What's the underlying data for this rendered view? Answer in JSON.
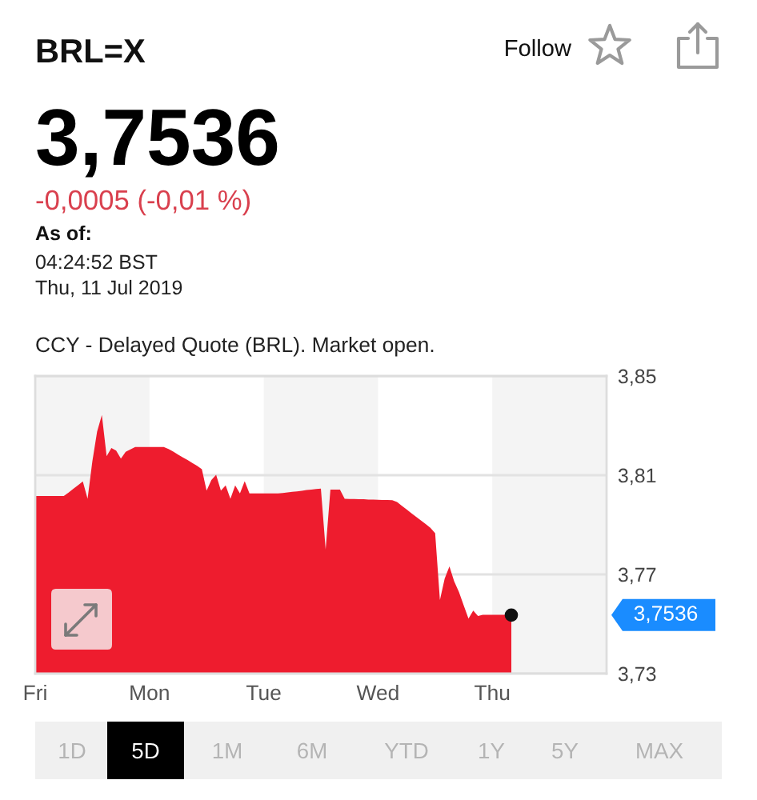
{
  "chart_data": {
    "type": "area",
    "title": "BRL=X",
    "color": "#ee1c2e",
    "categories": [
      "Fri",
      null,
      null,
      null,
      null,
      null,
      null,
      null,
      null,
      null,
      null,
      null,
      null,
      null,
      null,
      null,
      null,
      null,
      null,
      null,
      null,
      null,
      null,
      null,
      "Mon",
      null,
      null,
      null,
      null,
      null,
      null,
      null,
      null,
      null,
      null,
      null,
      null,
      null,
      null,
      null,
      null,
      null,
      null,
      null,
      null,
      null,
      null,
      null,
      "Tue",
      null,
      null,
      null,
      null,
      null,
      null,
      null,
      null,
      null,
      null,
      null,
      null,
      null,
      null,
      null,
      null,
      null,
      null,
      null,
      null,
      null,
      null,
      null,
      "Wed",
      null,
      null,
      null,
      null,
      null,
      null,
      null,
      null,
      null,
      null,
      null,
      null,
      null,
      null,
      null,
      null,
      null,
      null,
      null,
      null,
      null,
      null,
      null,
      "Thu",
      null,
      null,
      null,
      null,
      null,
      null,
      null,
      null,
      null,
      null,
      null,
      null,
      null,
      null,
      null,
      null,
      null,
      null,
      null,
      null,
      null,
      null,
      null
    ],
    "values": [
      3.8016,
      3.8016,
      3.8016,
      3.8016,
      3.8016,
      3.8016,
      3.8016,
      3.803,
      3.8045,
      3.806,
      3.8075,
      3.8005,
      3.8156,
      3.8276,
      3.8343,
      3.8177,
      3.821,
      3.8199,
      3.8167,
      3.8194,
      3.8204,
      3.8214,
      3.8214,
      3.8214,
      3.8214,
      3.8214,
      3.8214,
      3.8214,
      3.8206,
      3.8195,
      3.8183,
      3.8172,
      3.8161,
      3.8149,
      3.8138,
      3.8124,
      3.8038,
      3.8081,
      3.8102,
      3.8038,
      3.8059,
      3.8005,
      3.8059,
      3.8027,
      3.8076,
      3.8027,
      3.8027,
      3.8027,
      3.8027,
      3.8027,
      3.8027,
      3.8027,
      3.8028,
      3.8031,
      3.8033,
      3.8035,
      3.8037,
      3.804,
      3.8042,
      3.8044,
      3.8046,
      3.7801,
      3.8042,
      3.8042,
      3.8042,
      3.8005,
      3.8004,
      3.8004,
      3.8003,
      3.8003,
      3.8002,
      3.8002,
      3.8001,
      3.8,
      3.8,
      3.7999,
      3.7992,
      3.7977,
      3.7962,
      3.7947,
      3.7932,
      3.7918,
      3.7903,
      3.7888,
      3.7866,
      3.7597,
      3.7683,
      3.7732,
      3.7672,
      3.7629,
      3.7575,
      3.7522,
      3.7554,
      3.7532,
      3.7537,
      3.7537,
      3.7537,
      3.7537,
      3.7537,
      3.7537,
      3.7536,
      null,
      null,
      null,
      null,
      null,
      null,
      null,
      null,
      null,
      null,
      null,
      null,
      null,
      null,
      null,
      null,
      null,
      null,
      null
    ],
    "ylim": [
      3.73,
      3.85
    ],
    "yticks": [
      {
        "value": 3.73,
        "label": "3,73"
      },
      {
        "value": 3.77,
        "label": "3,77"
      },
      {
        "value": 3.81,
        "label": "3,81"
      },
      {
        "value": 3.85,
        "label": "3,85"
      }
    ],
    "grid": "y",
    "bands": [
      {
        "axis": "x",
        "from": "Mon",
        "to": "Tue",
        "color": "#ffffff"
      },
      {
        "axis": "x",
        "from": "Wed",
        "to": "Thu",
        "color": "#ffffff"
      }
    ],
    "annotations": [
      "3,7536",
      "-0,0005 (-0,01 %)",
      "As of:",
      "04:24:52 BST",
      "Thu, 11 Jul 2019",
      "CCY - Delayed Quote (BRL). Market open.",
      "Follow",
      "3,7536",
      "1D",
      "5D",
      "1M",
      "6M",
      "YTD",
      "1Y",
      "5Y",
      "MAX"
    ]
  }
}
